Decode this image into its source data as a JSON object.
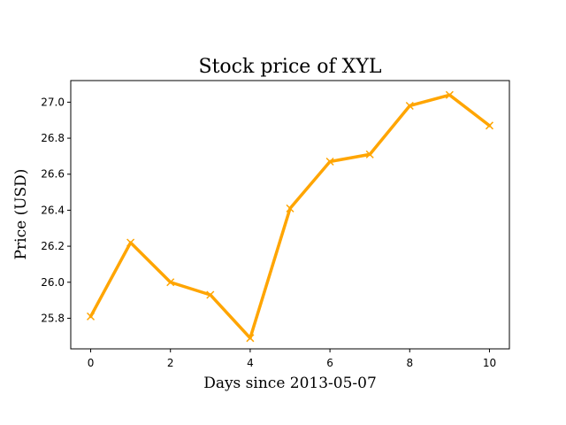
{
  "chart_data": {
    "type": "line",
    "title": "Stock price of XYL",
    "xlabel": "Days since 2013-05-07",
    "ylabel": "Price (USD)",
    "x": [
      0,
      1,
      2,
      3,
      4,
      5,
      6,
      7,
      8,
      9,
      10
    ],
    "series": [
      {
        "values": [
          25.81,
          26.22,
          26.0,
          25.93,
          25.69,
          26.41,
          26.67,
          26.71,
          26.98,
          27.04,
          26.87
        ],
        "color": "#FFA500",
        "marker": "x"
      }
    ],
    "xlim": [
      -0.5,
      10.5
    ],
    "ylim": [
      25.63,
      27.12
    ],
    "xticks": [
      0,
      2,
      4,
      6,
      8,
      10
    ],
    "xtick_labels": [
      "0",
      "2",
      "4",
      "6",
      "8",
      "10"
    ],
    "yticks": [
      25.8,
      26.0,
      26.2,
      26.4,
      26.6,
      26.8,
      27.0
    ],
    "ytick_labels": [
      "25.8",
      "26.0",
      "26.2",
      "26.4",
      "26.6",
      "26.8",
      "27.0"
    ],
    "grid": false,
    "legend": false
  }
}
